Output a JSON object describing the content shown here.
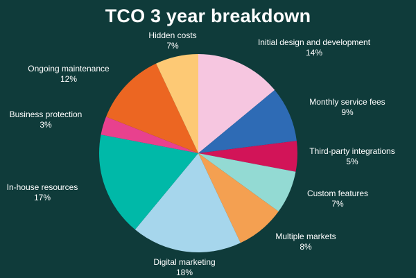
{
  "chart_data": {
    "type": "pie",
    "title": "TCO 3 year breakdown",
    "legend": "none",
    "slices": [
      {
        "label": "Initial design and development",
        "pct_label": "14%",
        "value": 14,
        "color": "#f6c6e0"
      },
      {
        "label": "Monthly service fees",
        "pct_label": "9%",
        "value": 9,
        "color": "#2e6bb5"
      },
      {
        "label": "Third-party integrations",
        "pct_label": "5%",
        "value": 5,
        "color": "#d21458"
      },
      {
        "label": "Custom features",
        "pct_label": "7%",
        "value": 7,
        "color": "#93dad3"
      },
      {
        "label": "Multiple markets",
        "pct_label": "8%",
        "value": 8,
        "color": "#f4a051"
      },
      {
        "label": "Digital marketing",
        "pct_label": "18%",
        "value": 18,
        "color": "#a6d6ec"
      },
      {
        "label": "In-house resources",
        "pct_label": "17%",
        "value": 17,
        "color": "#00b9a8"
      },
      {
        "label": "Business protection",
        "pct_label": "3%",
        "value": 3,
        "color": "#e8418e"
      },
      {
        "label": "Ongoing maintenance",
        "pct_label": "12%",
        "value": 12,
        "color": "#ec6622"
      },
      {
        "label": "Hidden costs",
        "pct_label": "7%",
        "value": 7,
        "color": "#fdc975"
      }
    ]
  }
}
